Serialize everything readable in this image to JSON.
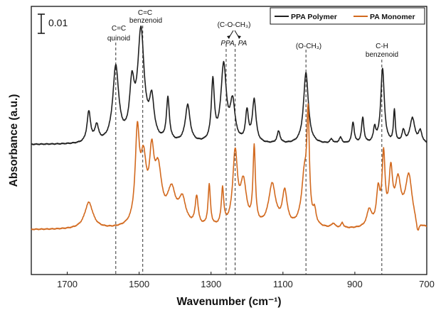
{
  "chart_data": {
    "type": "line",
    "xlabel": "Wavenumber (cm⁻¹)",
    "ylabel": "Absorbance (a.u.)",
    "xlim": [
      1800,
      700
    ],
    "x_reversed": true,
    "x_ticks": [
      "1700",
      "1500",
      "1300",
      "1100",
      "900",
      "700"
    ],
    "x_tick_values": [
      1700,
      1500,
      1300,
      1100,
      900,
      700
    ],
    "y_tick_labels_shown": false,
    "grid": false,
    "legend": {
      "placement": "top-right"
    },
    "scale_bar": {
      "label": "0.01",
      "value": 0.01
    },
    "series": [
      {
        "name": "PPA Polymer",
        "color": "#1f1f1f",
        "baseline": 0.0,
        "peaks": [
          [
            1640,
            0.036,
            6
          ],
          [
            1618,
            0.019,
            6
          ],
          [
            1565,
            0.088,
            10
          ],
          [
            1520,
            0.06,
            8
          ],
          [
            1495,
            0.128,
            11
          ],
          [
            1465,
            0.045,
            8
          ],
          [
            1420,
            0.05,
            5
          ],
          [
            1365,
            0.044,
            8
          ],
          [
            1295,
            0.07,
            5
          ],
          [
            1265,
            0.09,
            9
          ],
          [
            1240,
            0.045,
            8
          ],
          [
            1200,
            0.035,
            5
          ],
          [
            1180,
            0.05,
            6
          ],
          [
            1112,
            0.014,
            5
          ],
          [
            1036,
            0.084,
            8
          ],
          [
            965,
            0.005,
            5
          ],
          [
            940,
            0.007,
            5
          ],
          [
            905,
            0.025,
            4
          ],
          [
            878,
            0.03,
            4
          ],
          [
            845,
            0.017,
            4
          ],
          [
            823,
            0.088,
            6
          ],
          [
            790,
            0.038,
            3
          ],
          [
            765,
            0.014,
            5
          ],
          [
            740,
            0.03,
            8
          ],
          [
            718,
            0.014,
            6
          ]
        ]
      },
      {
        "name": "PA Monomer",
        "color": "#d2691e",
        "baseline": 0.0,
        "peaks": [
          [
            1640,
            0.031,
            14
          ],
          [
            1505,
            0.102,
            7
          ],
          [
            1488,
            0.07,
            10
          ],
          [
            1465,
            0.07,
            8
          ],
          [
            1447,
            0.06,
            12
          ],
          [
            1410,
            0.04,
            14
          ],
          [
            1380,
            0.03,
            12
          ],
          [
            1340,
            0.034,
            5
          ],
          [
            1305,
            0.048,
            4
          ],
          [
            1268,
            0.043,
            4
          ],
          [
            1233,
            0.085,
            8
          ],
          [
            1210,
            0.05,
            10
          ],
          [
            1180,
            0.09,
            4
          ],
          [
            1130,
            0.05,
            12
          ],
          [
            1095,
            0.04,
            8
          ],
          [
            1040,
            0.06,
            10
          ],
          [
            1030,
            0.115,
            4
          ],
          [
            1012,
            0.015,
            5
          ],
          [
            960,
            0.005,
            6
          ],
          [
            935,
            0.006,
            4
          ],
          [
            860,
            0.02,
            8
          ],
          [
            835,
            0.04,
            6
          ],
          [
            820,
            0.08,
            5
          ],
          [
            800,
            0.06,
            6
          ],
          [
            780,
            0.05,
            10
          ],
          [
            750,
            0.06,
            12
          ],
          [
            725,
            -0.014,
            5
          ]
        ]
      }
    ],
    "reference_lines": [
      {
        "x": 1565,
        "labels": [
          "C=C",
          "quinoid"
        ]
      },
      {
        "x": 1490,
        "labels": [
          "C=C",
          "benzenoid"
        ]
      },
      {
        "x": 1258,
        "labels": [
          "(C-O-CH₃)",
          "PPA"
        ]
      },
      {
        "x": 1233,
        "labels": [
          "PA"
        ]
      },
      {
        "x": 1036,
        "labels": [
          "(O-CH₃)"
        ]
      },
      {
        "x": 825,
        "labels": [
          "C-H",
          "benzenoid"
        ]
      }
    ],
    "annotations": {
      "cc_top": "C=C",
      "quinoid": "quinoid",
      "cc_top2": "C=C",
      "benzenoid": "benzenoid",
      "coch3": "(C-O-CH₃)",
      "ppa": "PPA",
      "pa": "PA",
      "och3": "(O-CH₃)",
      "ch": "C-H",
      "benzenoid2": "benzenoid"
    }
  }
}
